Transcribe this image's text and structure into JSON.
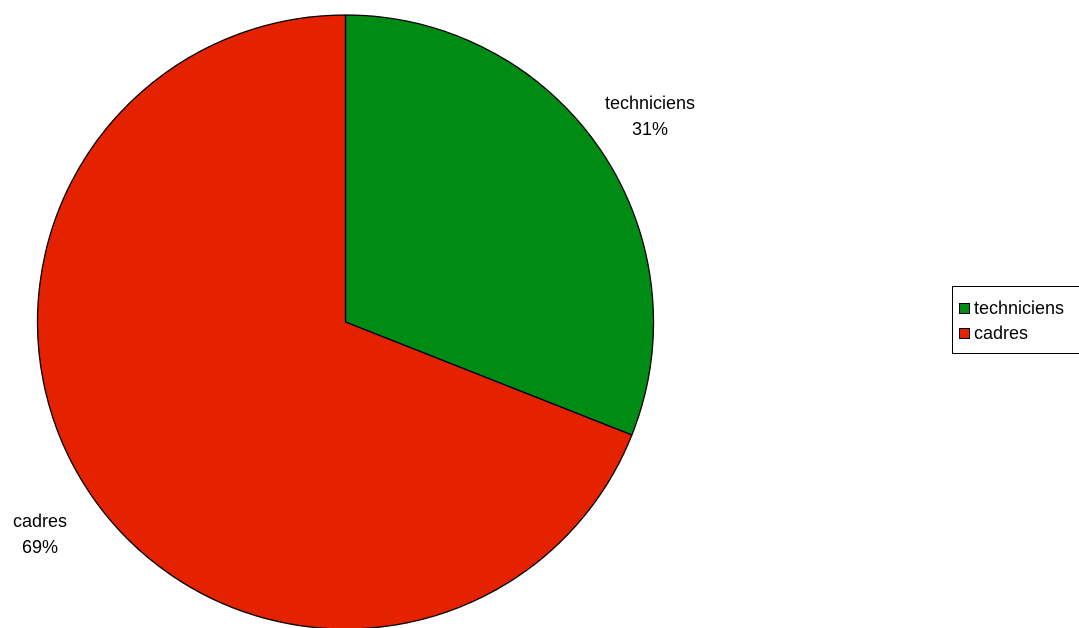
{
  "chart_data": {
    "type": "pie",
    "title": "",
    "categories": [
      "techniciens",
      "cadres"
    ],
    "values": [
      31,
      69
    ],
    "unit": "%",
    "colors": [
      "#008c14",
      "#e52200"
    ],
    "legend": "right",
    "slices": [
      {
        "label": "techniciens",
        "value": 31,
        "percent_label": "31%",
        "color": "#008c14"
      },
      {
        "label": "cadres",
        "value": 69,
        "percent_label": "69%",
        "color": "#e52200"
      }
    ]
  },
  "legend_items": [
    {
      "label": "techniciens",
      "color": "#008c14"
    },
    {
      "label": "cadres",
      "color": "#e52200"
    }
  ]
}
